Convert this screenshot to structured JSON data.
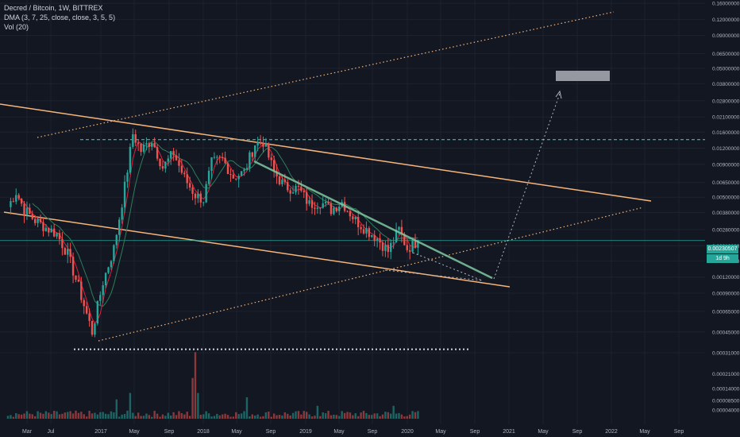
{
  "legend": {
    "symbol": "Decred / Bitcoin, 1W, BITTREX",
    "dma": "DMA (3, 7, 25, close, close, 3, 5, 5)",
    "vol": "Vol (20)"
  },
  "price_label": {
    "value": "0.00230507",
    "countdown": "1d 9h"
  },
  "colors": {
    "background": "#131722",
    "up": "#26a69a",
    "down": "#ef5350",
    "trendline": "#f7b57a",
    "fast_ma": "#e0203a",
    "slow_ma": "#2e7d5b",
    "support": "#7fc8a0",
    "dashed_level": "#4dd0c4"
  },
  "chart_data": {
    "type": "candlestick",
    "title": "Decred / Bitcoin, 1W, BITTREX",
    "x_ticks": [
      "Mar",
      "Jul",
      "2017",
      "May",
      "Sep",
      "2018",
      "May",
      "Sep",
      "2019",
      "May",
      "Sep",
      "2020",
      "May",
      "Sep",
      "2021",
      "May",
      "Sep",
      "2022",
      "May",
      "Sep"
    ],
    "y_scale": "log",
    "y_ticks": [
      "0.16000000",
      "0.12000000",
      "0.09000000",
      "0.06500000",
      "0.05000000",
      "0.03800000",
      "0.02800000",
      "0.02100000",
      "0.01600000",
      "0.01200000",
      "0.00900000",
      "0.00650000",
      "0.00500000",
      "0.00380000",
      "0.00280000",
      "0.00210000",
      "0.00160000",
      "0.00120000",
      "0.00090000",
      "0.00065000",
      "0.00045000",
      "0.00031000"
    ],
    "vol_ticks": [
      "0.00021000",
      "0.00014000",
      "0.00008500",
      "0.00004000"
    ],
    "price_path": [
      {
        "week": 0,
        "price": 0.0042
      },
      {
        "week": 3,
        "price": 0.0055
      },
      {
        "week": 6,
        "price": 0.004
      },
      {
        "week": 10,
        "price": 0.0033
      },
      {
        "week": 14,
        "price": 0.0029
      },
      {
        "week": 18,
        "price": 0.0026
      },
      {
        "week": 22,
        "price": 0.0018
      },
      {
        "week": 26,
        "price": 0.001
      },
      {
        "week": 31,
        "price": 0.00045
      },
      {
        "week": 35,
        "price": 0.0011
      },
      {
        "week": 39,
        "price": 0.002
      },
      {
        "week": 43,
        "price": 0.006
      },
      {
        "week": 46,
        "price": 0.0155
      },
      {
        "week": 49,
        "price": 0.0115
      },
      {
        "week": 53,
        "price": 0.014
      },
      {
        "week": 57,
        "price": 0.0085
      },
      {
        "week": 61,
        "price": 0.011
      },
      {
        "week": 65,
        "price": 0.007
      },
      {
        "week": 69,
        "price": 0.0052
      },
      {
        "week": 72,
        "price": 0.0048
      },
      {
        "week": 75,
        "price": 0.0092
      },
      {
        "week": 79,
        "price": 0.0098
      },
      {
        "week": 83,
        "price": 0.0072
      },
      {
        "week": 87,
        "price": 0.0078
      },
      {
        "week": 91,
        "price": 0.013
      },
      {
        "week": 94,
        "price": 0.0135
      },
      {
        "week": 98,
        "price": 0.0078
      },
      {
        "week": 102,
        "price": 0.006
      },
      {
        "week": 107,
        "price": 0.0058
      },
      {
        "week": 111,
        "price": 0.0044
      },
      {
        "week": 115,
        "price": 0.0046
      },
      {
        "week": 119,
        "price": 0.004
      },
      {
        "week": 123,
        "price": 0.0046
      },
      {
        "week": 128,
        "price": 0.0033
      },
      {
        "week": 132,
        "price": 0.0028
      },
      {
        "week": 136,
        "price": 0.0024
      },
      {
        "week": 140,
        "price": 0.0019
      },
      {
        "week": 144,
        "price": 0.0028
      },
      {
        "week": 147,
        "price": 0.002
      },
      {
        "week": 151,
        "price": 0.0023
      }
    ],
    "volume_spikes": [
      {
        "week": 40,
        "value": 9e-05
      },
      {
        "week": 45,
        "value": 0.00012
      },
      {
        "week": 68,
        "value": 0.00019
      },
      {
        "week": 69,
        "value": 0.00031
      },
      {
        "week": 70,
        "value": 0.00012
      },
      {
        "week": 88,
        "value": 0.0001
      },
      {
        "week": 114,
        "value": 6e-05
      },
      {
        "week": 142,
        "value": 6e-05
      }
    ],
    "current_price": 0.00230507,
    "dashed_resistance": 0.014,
    "dotted_support": 0.00033,
    "projection_target": 0.03
  }
}
